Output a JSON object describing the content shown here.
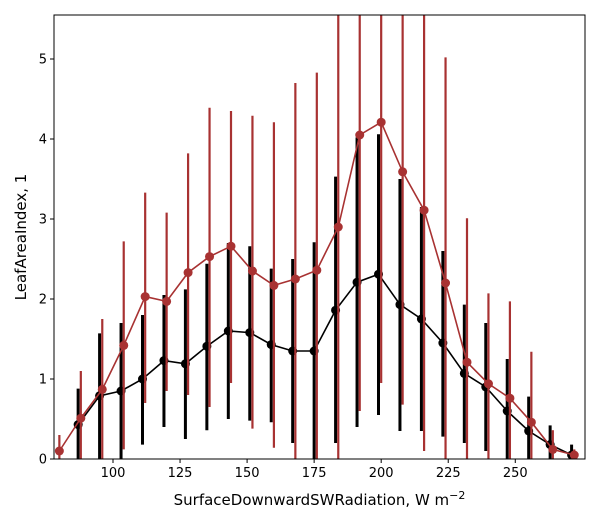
{
  "chart_data": {
    "type": "line",
    "xlabel": "SurfaceDownwardSWRadiation,  W m",
    "xlabel_sup": "−2",
    "ylabel": "LeafAreaIndex,  1",
    "xlim": [
      78,
      276
    ],
    "ylim": [
      0,
      5.55
    ],
    "xticks": [
      100,
      125,
      150,
      175,
      200,
      225,
      250
    ],
    "yticks": [
      0,
      1,
      2,
      3,
      4,
      5
    ],
    "grid": false,
    "colors": {
      "black": "#000000",
      "red": "#a83232"
    },
    "series": [
      {
        "color": "#000000",
        "x": [
          87,
          95,
          103,
          111,
          119,
          127,
          135,
          143,
          151,
          159,
          167,
          175,
          183,
          191,
          199,
          207,
          215,
          223,
          231,
          239,
          247,
          255,
          263,
          271
        ],
        "y": [
          0.43,
          0.79,
          0.85,
          1.0,
          1.23,
          1.19,
          1.41,
          1.6,
          1.58,
          1.43,
          1.35,
          1.35,
          1.86,
          2.21,
          2.31,
          1.93,
          1.75,
          1.45,
          1.07,
          0.9,
          0.6,
          0.35,
          0.18,
          0.05
        ],
        "err_low": [
          0.0,
          0.0,
          0.0,
          0.18,
          0.4,
          0.25,
          0.36,
          0.5,
          0.48,
          0.46,
          0.2,
          0.0,
          0.2,
          0.4,
          0.55,
          0.35,
          0.35,
          0.28,
          0.2,
          0.1,
          0.0,
          0.0,
          0.0,
          0.0
        ],
        "err_high": [
          0.88,
          1.57,
          1.7,
          1.8,
          2.05,
          2.12,
          2.44,
          2.7,
          2.66,
          2.38,
          2.5,
          2.71,
          3.53,
          4.02,
          4.06,
          3.5,
          3.15,
          2.6,
          1.93,
          1.7,
          1.25,
          0.78,
          0.42,
          0.18
        ]
      },
      {
        "color": "#a83232",
        "x": [
          80,
          88,
          96,
          104,
          112,
          120,
          128,
          136,
          144,
          152,
          160,
          168,
          176,
          184,
          192,
          200,
          208,
          216,
          224,
          232,
          240,
          248,
          256,
          264,
          272
        ],
        "y": [
          0.1,
          0.51,
          0.87,
          1.42,
          2.03,
          1.97,
          2.33,
          2.53,
          2.66,
          2.35,
          2.17,
          2.25,
          2.36,
          2.9,
          4.05,
          4.21,
          3.59,
          3.11,
          2.2,
          1.21,
          0.94,
          0.76,
          0.46,
          0.12,
          0.05
        ],
        "err_low": [
          0.0,
          0.0,
          0.0,
          0.12,
          0.7,
          0.85,
          0.8,
          0.65,
          0.95,
          0.38,
          0.14,
          0.0,
          0.0,
          0.0,
          0.6,
          0.95,
          0.68,
          0.1,
          0.0,
          0.0,
          0.0,
          0.0,
          0.0,
          0.0,
          0.0
        ],
        "err_high": [
          0.3,
          1.1,
          1.75,
          2.72,
          3.33,
          3.08,
          3.82,
          4.39,
          4.35,
          4.29,
          4.21,
          4.7,
          4.83,
          5.55,
          5.55,
          5.55,
          5.55,
          5.55,
          5.02,
          3.01,
          2.07,
          1.97,
          1.34,
          0.36,
          0.12
        ]
      }
    ]
  }
}
